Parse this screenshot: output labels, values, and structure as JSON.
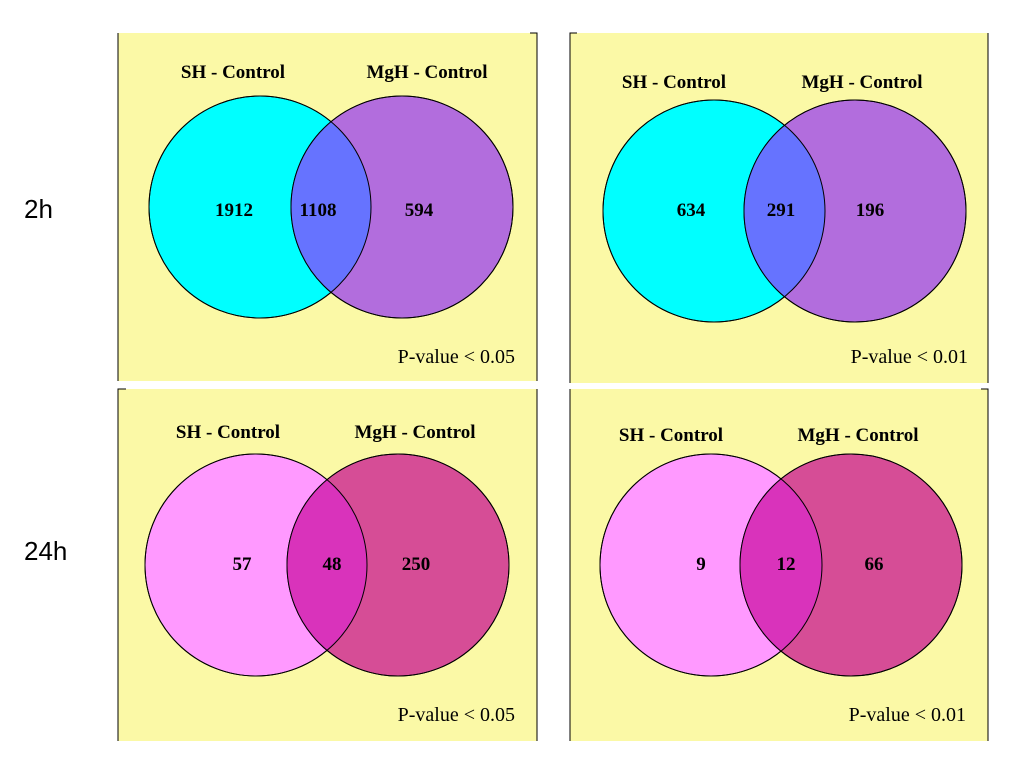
{
  "rows": [
    {
      "label": "2h",
      "panels": [
        {
          "left_label": "SH - Control",
          "right_label": "MgH - Control",
          "left_only": "1912",
          "overlap": "1108",
          "right_only": "594",
          "pvalue": "P-value < 0.05",
          "colors": {
            "left": "#00ffff",
            "right": "#b26ddd",
            "overlap": "#6673ff"
          }
        },
        {
          "left_label": "SH - Control",
          "right_label": "MgH - Control",
          "left_only": "634",
          "overlap": "291",
          "right_only": "196",
          "pvalue": "P-value < 0.01",
          "colors": {
            "left": "#00ffff",
            "right": "#b26ddd",
            "overlap": "#6673ff"
          }
        }
      ]
    },
    {
      "label": "24h",
      "panels": [
        {
          "left_label": "SH - Control",
          "right_label": "MgH - Control",
          "left_only": "57",
          "overlap": "48",
          "right_only": "250",
          "pvalue": "P-value < 0.05",
          "colors": {
            "left": "#ff99ff",
            "right": "#d64d96",
            "overlap": "#d933bb"
          }
        },
        {
          "left_label": "SH - Control",
          "right_label": "MgH - Control",
          "left_only": "9",
          "overlap": "12",
          "right_only": "66",
          "pvalue": "P-value < 0.01",
          "colors": {
            "left": "#ff99ff",
            "right": "#d64d96",
            "overlap": "#d933bb"
          }
        }
      ]
    }
  ]
}
